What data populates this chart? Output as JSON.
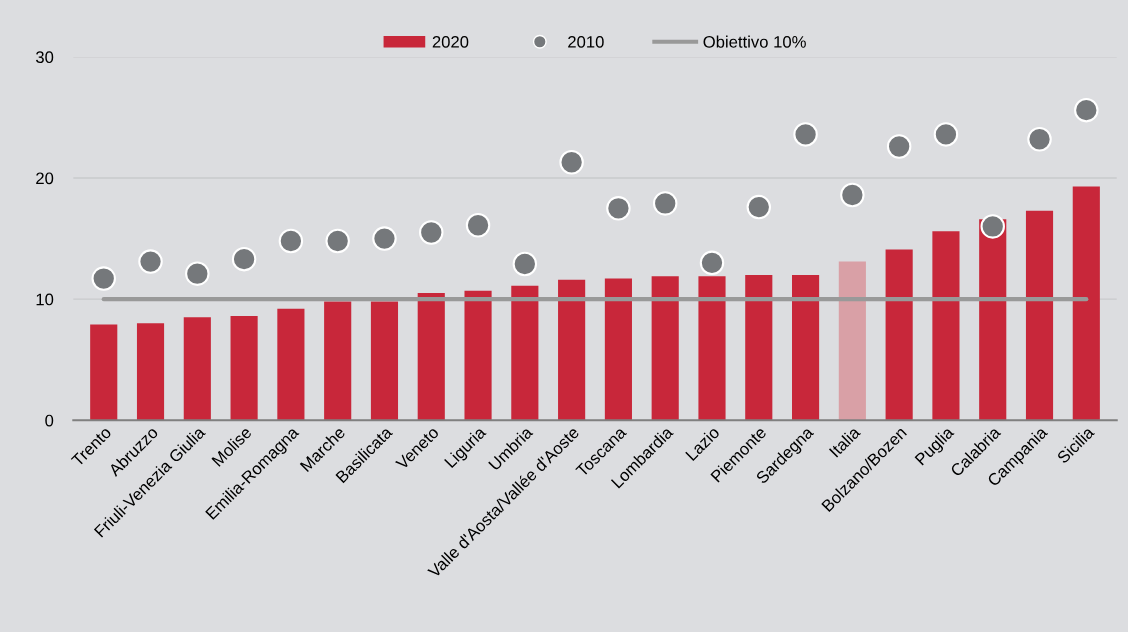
{
  "chart_data": {
    "type": "bar",
    "categories": [
      "Trento",
      "Abruzzo",
      "Friuli-Venezia Giulia",
      "Molise",
      "Emilia-Romagna",
      "Marche",
      "Basilicata",
      "Veneto",
      "Liguria",
      "Umbria",
      "Valle d'Aosta/Vallée d'Aoste",
      "Toscana",
      "Lombardia",
      "Lazio",
      "Piemonte",
      "Sardegna",
      "Italia",
      "Bolzano/Bozen",
      "Puglia",
      "Calabria",
      "Campania",
      "Sicilia"
    ],
    "series": [
      {
        "name": "2020",
        "color": "#c8273a",
        "colors": [
          "#c8273a",
          "#c8273a",
          "#c8273a",
          "#c8273a",
          "#c8273a",
          "#c8273a",
          "#c8273a",
          "#c8273a",
          "#c8273a",
          "#c8273a",
          "#c8273a",
          "#c8273a",
          "#c8273a",
          "#c8273a",
          "#c8273a",
          "#c8273a",
          "#d9a0a6",
          "#c8273a",
          "#c8273a",
          "#c8273a",
          "#c8273a",
          "#c8273a"
        ],
        "values": [
          7.9,
          8.0,
          8.5,
          8.6,
          9.2,
          9.8,
          9.8,
          10.5,
          10.7,
          11.1,
          11.6,
          11.7,
          11.9,
          11.9,
          12.0,
          12.0,
          13.1,
          14.1,
          15.6,
          16.6,
          17.3,
          19.3
        ]
      },
      {
        "name": "2010",
        "type": "scatter",
        "color": "#75787b",
        "marker": "circle",
        "x": [
          "Trento",
          "Abruzzo",
          "Friuli-Venezia Giulia",
          "Molise",
          "Emilia-Romagna",
          "Marche",
          "Basilicata",
          "Veneto",
          "Liguria",
          "Umbria",
          "Valle d'Aosta/Vallée d'Aoste",
          "Toscana",
          "Lombardia",
          "Lazio",
          "Piemonte",
          "Sardegna",
          "Italia",
          "Bolzano/Bozen",
          "Puglia",
          "Calabria",
          "Campania",
          "Sicilia"
        ],
        "values": [
          11.7,
          13.1,
          12.1,
          13.3,
          14.8,
          14.8,
          15.0,
          15.5,
          16.1,
          12.9,
          21.3,
          17.5,
          17.9,
          13.0,
          17.6,
          23.6,
          18.6,
          22.6,
          23.6,
          16.0,
          23.2,
          25.6
        ]
      }
    ],
    "ref_lines": [
      {
        "axis": "y",
        "value": 10,
        "label": "Obiettivo 10%",
        "color": "#999999",
        "line_style": "solid"
      }
    ],
    "ylim": [
      0,
      30
    ],
    "yticks": [
      0,
      10,
      20,
      30
    ],
    "grid": "y",
    "legend": "top"
  }
}
